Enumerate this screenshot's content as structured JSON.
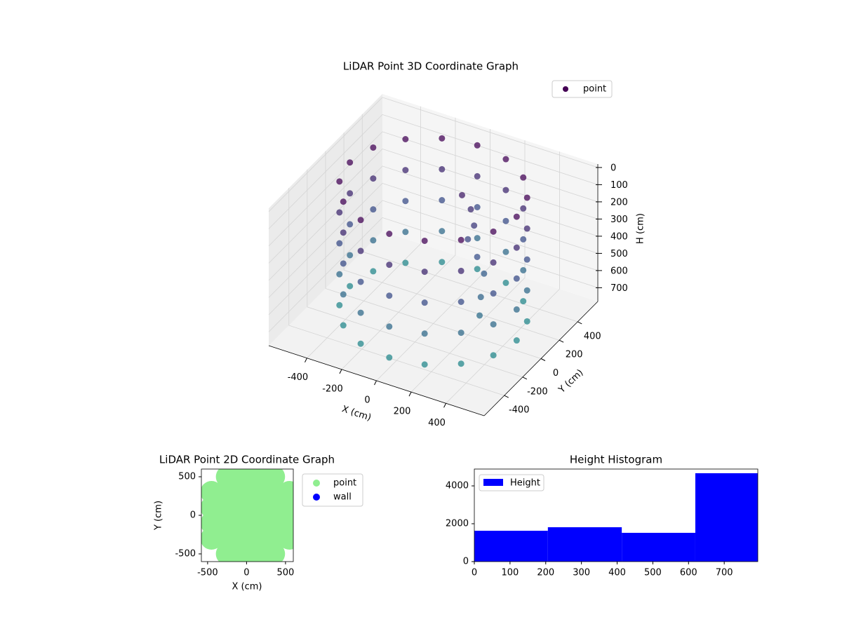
{
  "chart_data": [
    {
      "type": "scatter3d",
      "title": "LiDAR Point 3D Coordinate Graph",
      "xlabel": "X (cm)",
      "ylabel": "Y (cm)",
      "zlabel": "H (cm)",
      "xlim": [
        -620,
        620
      ],
      "ylim": [
        -620,
        620
      ],
      "zlim": [
        -20,
        780
      ],
      "z_inverted": true,
      "xticks": [
        -400,
        -200,
        0,
        200,
        400
      ],
      "yticks": [
        -400,
        -200,
        0,
        200,
        400
      ],
      "zticks": [
        0,
        100,
        200,
        300,
        400,
        500,
        600,
        700
      ],
      "colormap": [
        "#440154",
        "#3b528b",
        "#21918c"
      ],
      "legend": "upper right",
      "grid": true,
      "series": [
        {
          "name": "point",
          "color": "#440154",
          "x": [
            480,
            443,
            339,
            184,
            0,
            -184,
            -339,
            -443,
            -480,
            -443,
            -339,
            -184,
            0,
            184,
            339,
            443,
            480,
            443,
            339,
            184,
            0,
            -184,
            -339,
            -443,
            -480,
            -443,
            -339,
            -184,
            0,
            184,
            339,
            443,
            480,
            443,
            339,
            184,
            0,
            -184,
            -339,
            -443,
            -480,
            -443,
            -339,
            -184,
            0,
            184,
            339,
            443,
            480,
            443,
            339,
            184,
            0,
            -184,
            -339,
            -443,
            -480,
            -443,
            -339,
            -184,
            0,
            184,
            339,
            443,
            480,
            443,
            339,
            184,
            0,
            -184,
            -339,
            -443,
            -480,
            -443,
            -339,
            -184,
            0,
            184,
            339,
            443,
            60,
            100,
            140,
            120,
            200,
            250,
            300,
            330
          ],
          "y": [
            0,
            184,
            339,
            443,
            480,
            443,
            339,
            184,
            0,
            -184,
            -339,
            -443,
            -480,
            -443,
            -339,
            -184,
            0,
            184,
            339,
            443,
            480,
            443,
            339,
            184,
            0,
            -184,
            -339,
            -443,
            -480,
            -443,
            -339,
            -184,
            0,
            184,
            339,
            443,
            480,
            443,
            339,
            184,
            0,
            -184,
            -339,
            -443,
            -480,
            -443,
            -339,
            -184,
            0,
            184,
            339,
            443,
            480,
            443,
            339,
            184,
            0,
            -184,
            -339,
            -443,
            -480,
            -443,
            -339,
            -184,
            0,
            184,
            339,
            443,
            480,
            443,
            339,
            184,
            0,
            -184,
            -339,
            -443,
            -480,
            -443,
            -339,
            -184,
            200,
            220,
            180,
            150,
            100,
            80,
            -50,
            -120
          ],
          "z": [
            0,
            0,
            0,
            0,
            0,
            0,
            0,
            0,
            0,
            0,
            0,
            0,
            0,
            0,
            0,
            0,
            180,
            180,
            180,
            180,
            180,
            180,
            180,
            180,
            180,
            180,
            180,
            180,
            180,
            180,
            180,
            180,
            360,
            360,
            360,
            360,
            360,
            360,
            360,
            360,
            360,
            360,
            360,
            360,
            360,
            360,
            360,
            360,
            540,
            540,
            540,
            540,
            540,
            540,
            540,
            540,
            540,
            540,
            540,
            540,
            540,
            540,
            540,
            540,
            720,
            720,
            720,
            720,
            720,
            720,
            720,
            720,
            720,
            720,
            720,
            720,
            720,
            720,
            720,
            720,
            120,
            200,
            260,
            330,
            380,
            450,
            500,
            560
          ]
        }
      ]
    },
    {
      "type": "scatter",
      "title": "LiDAR Point 2D Coordinate Graph",
      "xlabel": "X (cm)",
      "ylabel": "Y (cm)",
      "xlim": [
        -580,
        600
      ],
      "ylim": [
        -600,
        600
      ],
      "xticks": [
        -500,
        0,
        500
      ],
      "yticks": [
        -500,
        0,
        500
      ],
      "legend": "outside right",
      "series": [
        {
          "name": "point",
          "color": "#90ee90",
          "x": [
            -450,
            -450,
            -450,
            -450,
            -250,
            -250,
            -250,
            -250,
            -250,
            -250,
            -50,
            -50,
            -50,
            -50,
            -50,
            -50,
            150,
            150,
            150,
            150,
            150,
            150,
            350,
            350,
            350,
            350,
            350,
            350,
            550,
            550,
            550,
            550
          ],
          "y": [
            -300,
            -100,
            100,
            300,
            -500,
            -300,
            -100,
            100,
            300,
            500,
            -500,
            -300,
            -100,
            100,
            300,
            500,
            -500,
            -300,
            -100,
            100,
            300,
            500,
            -500,
            -300,
            -100,
            100,
            300,
            500,
            -300,
            -100,
            100,
            300
          ]
        },
        {
          "name": "wall",
          "color": "#0000ff",
          "x": [],
          "y": []
        }
      ]
    },
    {
      "type": "histogram",
      "title": "Height Histogram",
      "name": "Height",
      "color": "#0000ff",
      "bins": [
        0,
        206,
        413,
        619,
        826
      ],
      "values": [
        1630,
        1815,
        1520,
        4670
      ],
      "xlim": [
        0,
        794
      ],
      "ylim": [
        0,
        4890
      ],
      "xticks": [
        0,
        100,
        200,
        300,
        400,
        500,
        600,
        700
      ],
      "yticks": [
        0,
        2000,
        4000
      ],
      "legend": "upper left"
    }
  ]
}
